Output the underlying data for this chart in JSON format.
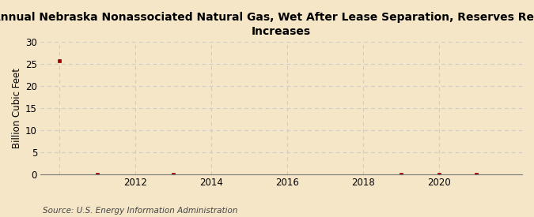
{
  "title": "Annual Nebraska Nonassociated Natural Gas, Wet After Lease Separation, Reserves Revision\nIncreases",
  "ylabel": "Billion Cubic Feet",
  "source": "Source: U.S. Energy Information Administration",
  "background_color": "#f5e6c8",
  "plot_bg_color": "#f5e6c8",
  "years": [
    2010,
    2011,
    2013,
    2019,
    2020,
    2021
  ],
  "values": [
    25.7,
    0.0,
    0.05,
    0.05,
    0.05,
    0.05
  ],
  "ylim": [
    0,
    30
  ],
  "yticks": [
    0,
    5,
    10,
    15,
    20,
    25,
    30
  ],
  "xlim": [
    2009.5,
    2022.2
  ],
  "xticks": [
    2010,
    2012,
    2014,
    2016,
    2018,
    2020
  ],
  "xtick_labels": [
    "",
    "2012",
    "2014",
    "2016",
    "2018",
    "2020"
  ],
  "marker_color": "#990000",
  "grid_color": "#cccccc",
  "title_fontsize": 10,
  "axis_label_fontsize": 8.5,
  "tick_fontsize": 8.5,
  "source_fontsize": 7.5
}
